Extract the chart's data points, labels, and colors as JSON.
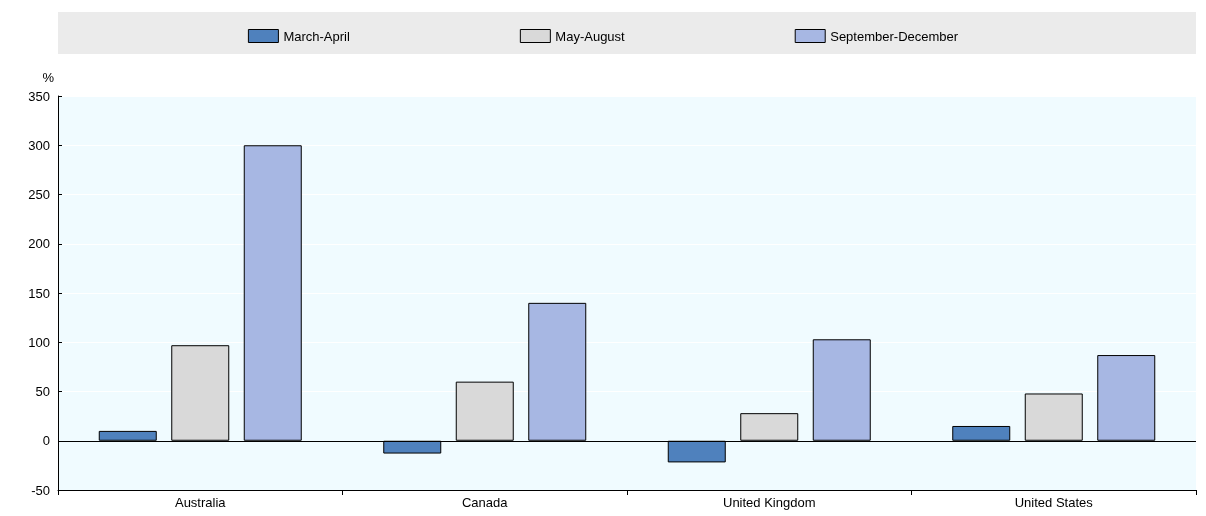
{
  "chart_data": {
    "type": "bar",
    "ylabel": "%",
    "categories": [
      "Australia",
      "Canada",
      "United Kingdom",
      "United States"
    ],
    "series": [
      {
        "name": "March-April",
        "color": "#4f81bd",
        "values": [
          10,
          -13,
          -22,
          15
        ]
      },
      {
        "name": "May-August",
        "color": "#d9d9d9",
        "values": [
          97,
          60,
          28,
          48
        ]
      },
      {
        "name": "September-December",
        "color": "#a7b7e3",
        "values": [
          300,
          140,
          103,
          87
        ]
      }
    ],
    "ylim": [
      -50,
      350
    ],
    "yticks": [
      -50,
      0,
      50,
      100,
      150,
      200,
      250,
      300,
      350
    ],
    "grid": "y",
    "legend": "top"
  }
}
